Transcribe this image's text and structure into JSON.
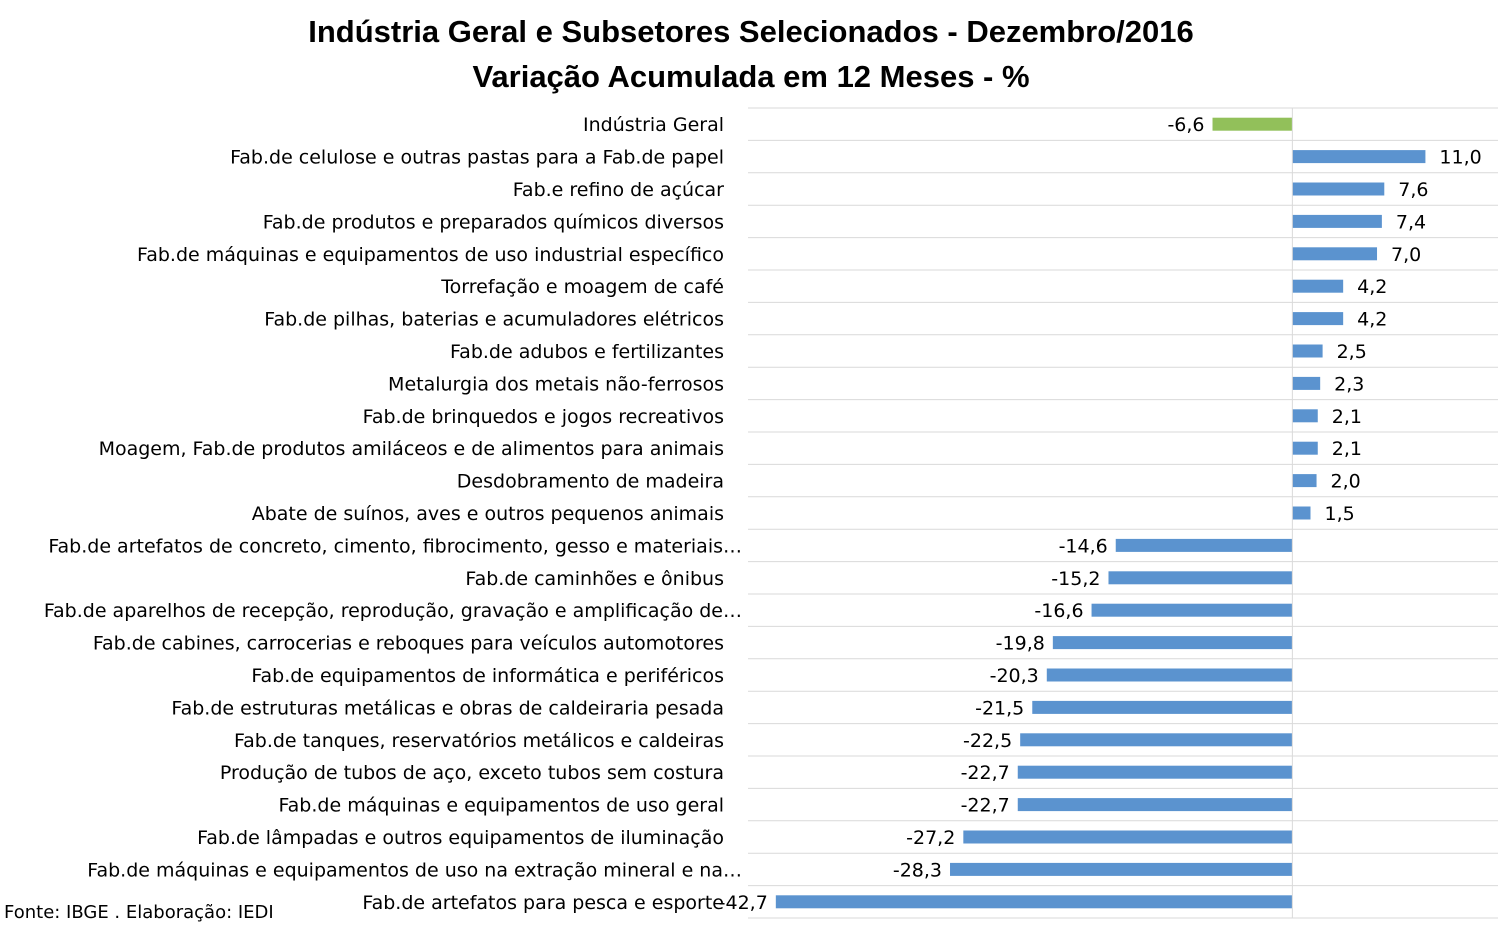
{
  "chart_data": {
    "type": "bar",
    "orientation": "horizontal",
    "title": "Indústria Geral e Subsetores Selecionados - Dezembro/2016",
    "subtitle": "Variação Acumulada em 12 Meses - %",
    "xlabel": "",
    "ylabel": "",
    "xlim": [
      -45,
      17
    ],
    "grid": "horizontal",
    "legend": "none",
    "categories": [
      "Indústria Geral",
      "Fab.de celulose e outras pastas para a Fab.de papel",
      "Fab.e refino de açúcar",
      "Fab.de produtos e preparados químicos diversos",
      "Fab.de máquinas e equipamentos de uso industrial específico",
      "Torrefação e moagem de café",
      "Fab.de pilhas, baterias e acumuladores elétricos",
      "Fab.de adubos e fertilizantes",
      "Metalurgia dos metais não-ferrosos",
      "Fab.de brinquedos e jogos recreativos",
      "Moagem, Fab.de produtos amiláceos e de alimentos para animais",
      "Desdobramento de madeira",
      "Abate de suínos, aves e outros pequenos animais",
      "Fab.de artefatos de concreto, cimento, fibrocimento, gesso e materiais…",
      "Fab.de caminhões e ônibus",
      "Fab.de aparelhos de recepção, reprodução, gravação e amplificação de…",
      "Fab.de cabines, carrocerias e reboques para veículos automotores",
      "Fab.de equipamentos de informática e periféricos",
      "Fab.de estruturas metálicas e obras de caldeiraria pesada",
      "Fab.de tanques, reservatórios metálicos e caldeiras",
      "Produção de tubos de aço, exceto tubos sem costura",
      "Fab.de máquinas e equipamentos de uso geral",
      "Fab.de lâmpadas e outros equipamentos de iluminação",
      "Fab.de máquinas e equipamentos de uso na extração mineral e na…",
      "Fab.de artefatos para pesca e esporte"
    ],
    "values": [
      -6.6,
      11.0,
      7.6,
      7.4,
      7.0,
      4.2,
      4.2,
      2.5,
      2.3,
      2.1,
      2.1,
      2.0,
      1.5,
      -14.6,
      -15.2,
      -16.6,
      -19.8,
      -20.3,
      -21.5,
      -22.5,
      -22.7,
      -22.7,
      -27.2,
      -28.3,
      -42.7
    ],
    "value_labels": [
      "-6,6",
      "11,0",
      "7,6",
      "7,4",
      "7,0",
      "4,2",
      "4,2",
      "2,5",
      "2,3",
      "2,1",
      "2,1",
      "2,0",
      "1,5",
      "-14,6",
      "-15,2",
      "-16,6",
      "-19,8",
      "-20,3",
      "-21,5",
      "-22,5",
      "-22,7",
      "-22,7",
      "-27,2",
      "-28,3",
      "-42,7"
    ],
    "colors": {
      "highlight": "#92c05a",
      "default": "#5b93cf",
      "highlight_index": 0
    }
  },
  "footer": {
    "source": "Fonte: IBGE . Elaboração: IEDI"
  }
}
